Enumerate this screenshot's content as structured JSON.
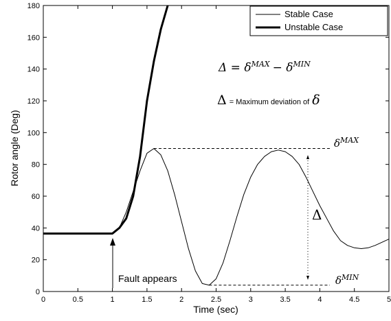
{
  "chart_data": {
    "type": "line",
    "xlabel": "Time (sec)",
    "ylabel": "Rotor angle (Deg)",
    "x": [
      0,
      0.5,
      1.0,
      1.1,
      1.2,
      1.3,
      1.4,
      1.5,
      1.6,
      1.7,
      1.8,
      1.9,
      2.0,
      2.1,
      2.2,
      2.3,
      2.4,
      2.5,
      2.6,
      2.7,
      2.8,
      2.9,
      3.0,
      3.1,
      3.2,
      3.3,
      3.4,
      3.5,
      3.6,
      3.7,
      3.8,
      3.9,
      4.0,
      4.1,
      4.2,
      4.3,
      4.4,
      4.5,
      4.6,
      4.7,
      4.8,
      4.9,
      5.0
    ],
    "series": [
      {
        "name": "Stable Case",
        "color": "#000000",
        "width": 1,
        "values": [
          36.5,
          36.5,
          36.5,
          40,
          50,
          63,
          76,
          87,
          90,
          86,
          76,
          61,
          44,
          27,
          13,
          5,
          4,
          8,
          18,
          32,
          47,
          61,
          72,
          80,
          85,
          88,
          89,
          88,
          85,
          80,
          72,
          63,
          54,
          46,
          38,
          32,
          29,
          27.5,
          27,
          27.5,
          29,
          31,
          33
        ]
      },
      {
        "name": "Unstable Case",
        "color": "#000000",
        "width": 3,
        "values": [
          36.5,
          36.5,
          36.5,
          40,
          46,
          60,
          85,
          120,
          145,
          165,
          180,
          null,
          null,
          null,
          null,
          null,
          null,
          null,
          null,
          null,
          null,
          null,
          null,
          null,
          null,
          null,
          null,
          null,
          null,
          null,
          null,
          null,
          null,
          null,
          null,
          null,
          null,
          null,
          null,
          null,
          null,
          null,
          null
        ]
      }
    ],
    "xlim": [
      0,
      5
    ],
    "xticks": [
      0,
      0.5,
      1,
      1.5,
      2,
      2.5,
      3,
      3.5,
      4,
      4.5,
      5
    ],
    "ylim": [
      0,
      180
    ],
    "yticks": [
      0,
      20,
      40,
      60,
      80,
      100,
      120,
      140,
      160,
      180
    ],
    "legend": "upper right",
    "annotations": {
      "formula": {
        "delta": "Δ = δ",
        "sup_max": "MAX",
        "minus": "− δ",
        "sup_min": "MIN"
      },
      "definition": {
        "delta": "Δ",
        "text": "= Maximum deviation of",
        "symbol": "δ"
      },
      "max_label": {
        "base": "δ",
        "sup": "MAX"
      },
      "min_label": {
        "base": "δ",
        "sup": "MIN"
      },
      "range_label": "Δ",
      "fault": "Fault appears"
    }
  }
}
